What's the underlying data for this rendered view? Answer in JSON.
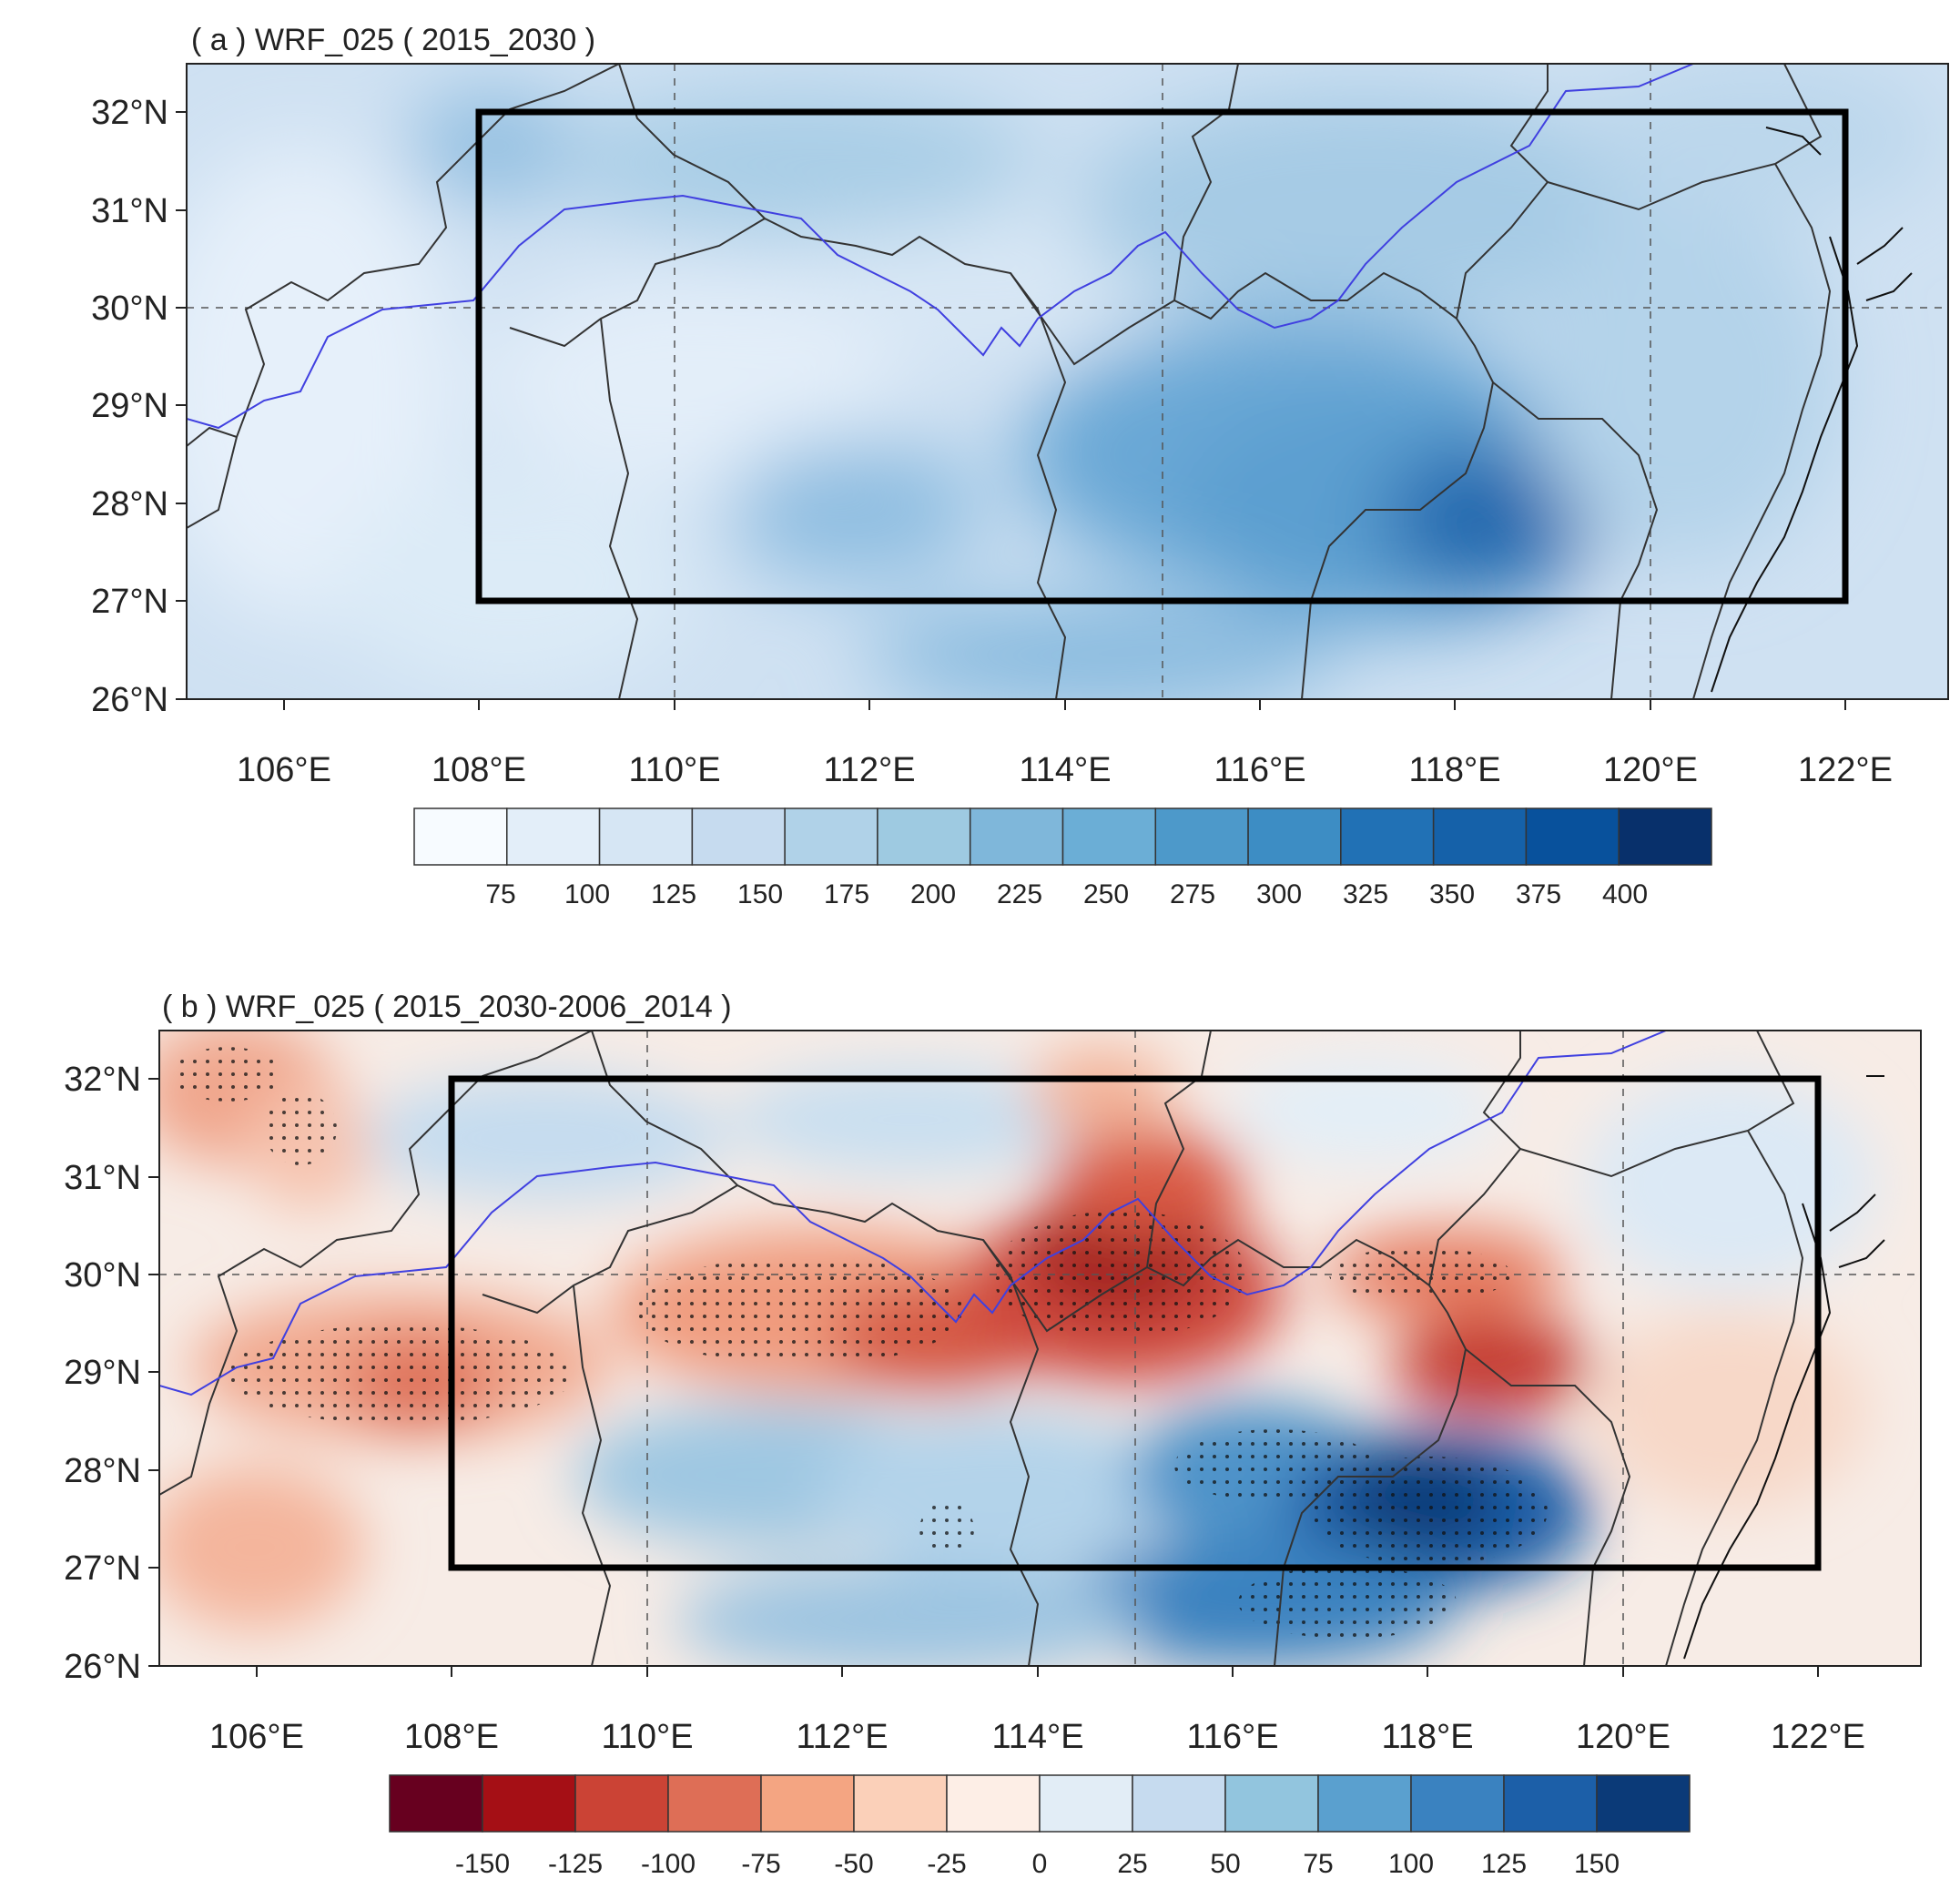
{
  "panels": [
    {
      "id": "a",
      "title": "( a ) WRF_025 ( 2015_2030 )",
      "lat_labels": [
        "32°N",
        "31°N",
        "30°N",
        "29°N",
        "28°N",
        "27°N",
        "26°N"
      ],
      "lon_labels": [
        "106°E",
        "108°E",
        "110°E",
        "112°E",
        "114°E",
        "116°E",
        "118°E",
        "120°E",
        "122°E"
      ],
      "colorbar": {
        "colors": [
          "#f7fbff",
          "#e3eef9",
          "#d6e6f4",
          "#c6dbef",
          "#b0d2e8",
          "#9ecae1",
          "#7fb7da",
          "#6baed6",
          "#4d99ca",
          "#3d8dc4",
          "#2171b5",
          "#1561a9",
          "#08519c",
          "#08306b"
        ],
        "labels": [
          "75",
          "100",
          "125",
          "150",
          "175",
          "200",
          "225",
          "250",
          "275",
          "300",
          "325",
          "350",
          "375",
          "400"
        ]
      }
    },
    {
      "id": "b",
      "title": "( b ) WRF_025 ( 2015_2030-2006_2014 )",
      "lat_labels": [
        "32°N",
        "31°N",
        "30°N",
        "29°N",
        "28°N",
        "27°N",
        "26°N"
      ],
      "lon_labels": [
        "106°E",
        "108°E",
        "110°E",
        "112°E",
        "114°E",
        "116°E",
        "118°E",
        "120°E",
        "122°E"
      ],
      "colorbar": {
        "colors": [
          "#67001f",
          "#a50f15",
          "#cb4335",
          "#de6e56",
          "#f4a582",
          "#fbd0b9",
          "#fdeee6",
          "#e2edf6",
          "#c6dbef",
          "#92c5de",
          "#5aa0cf",
          "#3a82c0",
          "#1c5fa8",
          "#0b3a78"
        ],
        "labels": [
          "-150",
          "-125",
          "-100",
          "-75",
          "-50",
          "-25",
          "0",
          "25",
          "50",
          "75",
          "100",
          "125",
          "150"
        ]
      }
    }
  ]
}
